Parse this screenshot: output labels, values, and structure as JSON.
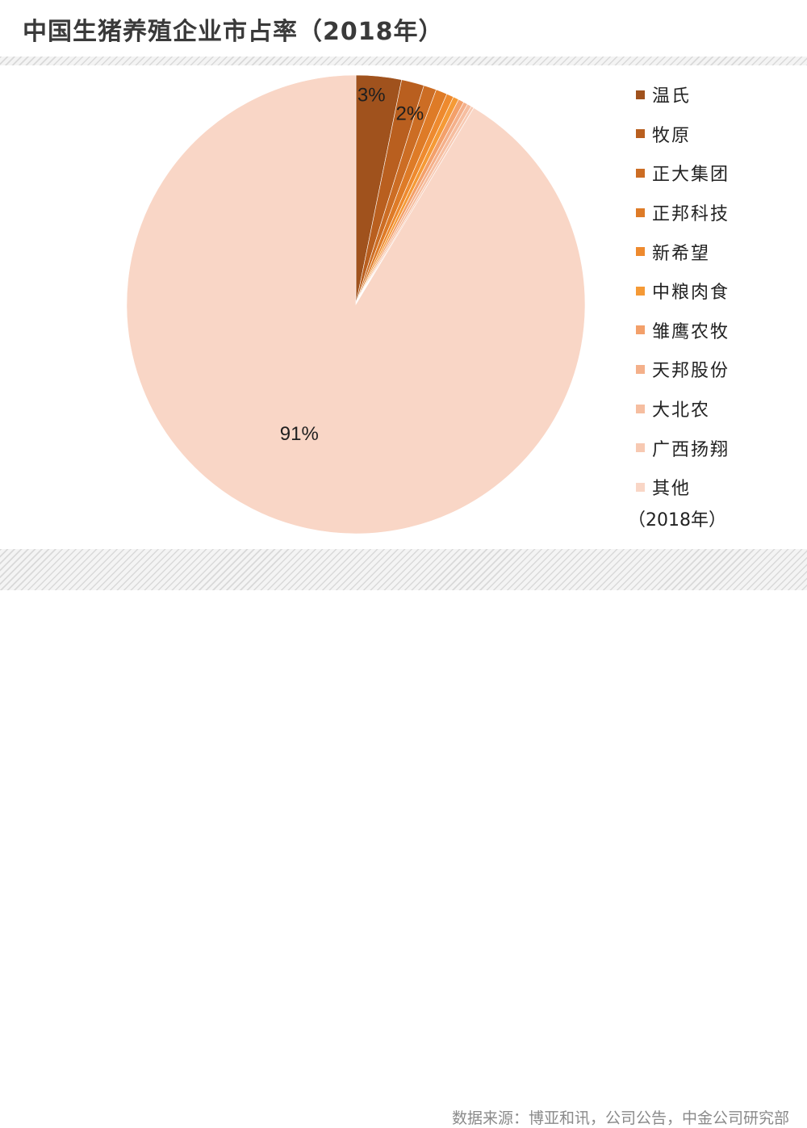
{
  "title": "中国生猪养殖企业市占率（2018年）",
  "source": "数据来源：博亚和讯，公司公告，中金公司研究部",
  "year_note": "（2018年）",
  "chart_data": {
    "type": "pie",
    "title": "中国生猪养殖企业市占率（2018年）",
    "unit": "%",
    "start_angle_deg": 0,
    "direction": "clockwise",
    "slices": [
      {
        "label": "温氏",
        "value": 3.2,
        "color": "#a0521d",
        "display": "3%"
      },
      {
        "label": "牧原",
        "value": 1.6,
        "color": "#b95f1f",
        "display": "2%"
      },
      {
        "label": "正大集团",
        "value": 0.9,
        "color": "#cc6d24",
        "display": ""
      },
      {
        "label": "正邦科技",
        "value": 0.8,
        "color": "#de7b27",
        "display": ""
      },
      {
        "label": "新希望",
        "value": 0.5,
        "color": "#ee8a2e",
        "display": ""
      },
      {
        "label": "中粮肉食",
        "value": 0.4,
        "color": "#f59a36",
        "display": ""
      },
      {
        "label": "雏鹰农牧",
        "value": 0.4,
        "color": "#f3a06a",
        "display": ""
      },
      {
        "label": "天邦股份",
        "value": 0.3,
        "color": "#f4b08a",
        "display": ""
      },
      {
        "label": "大北农",
        "value": 0.3,
        "color": "#f6bea0",
        "display": ""
      },
      {
        "label": "广西扬翔",
        "value": 0.2,
        "color": "#f7c9b2",
        "display": ""
      },
      {
        "label": "其他",
        "value": 91.4,
        "color": "#f9d6c6",
        "display": "91%"
      }
    ]
  }
}
